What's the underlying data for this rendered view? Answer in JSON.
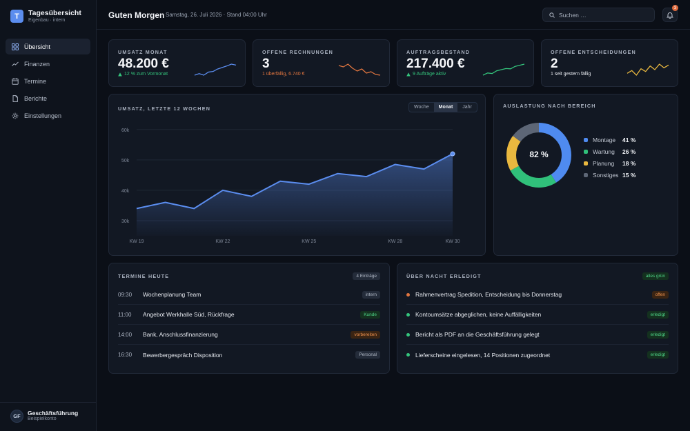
{
  "brand": {
    "logo_letter": "T",
    "title": "Tagesübersicht",
    "subtitle": "Eigenbau · intern"
  },
  "nav": [
    {
      "label": "Übersicht",
      "icon": "grid-icon",
      "active": true
    },
    {
      "label": "Finanzen",
      "icon": "trend-icon",
      "active": false
    },
    {
      "label": "Termine",
      "icon": "calendar-icon",
      "active": false
    },
    {
      "label": "Berichte",
      "icon": "document-icon",
      "active": false
    },
    {
      "label": "Einstellungen",
      "icon": "gear-icon",
      "active": false
    }
  ],
  "user": {
    "initials": "GF",
    "name": "Geschäftsführung",
    "account": "Beispielkonto"
  },
  "header": {
    "greeting": "Guten Morgen",
    "date": "Samstag, 26. Juli 2026 · Stand 04:00 Uhr",
    "search_placeholder": "Suchen …",
    "notification_count": "3"
  },
  "kpis": [
    {
      "label": "UMSATZ MONAT",
      "value": "48.200 €",
      "sub": "12 % zum Vormonat",
      "trend": "up",
      "sub_color": "#34c47c",
      "spark_color": "#5b8def",
      "spark": [
        3,
        3.5,
        3,
        4,
        4.2,
        5,
        5.5,
        6,
        6.6,
        6.3
      ]
    },
    {
      "label": "OFFENE RECHNUNGEN",
      "value": "3",
      "sub": "1 überfällig, 6.740 €",
      "trend": "none",
      "sub_color": "#e0753f",
      "spark_color": "#e0753f",
      "spark": [
        5,
        4.8,
        5.2,
        4.6,
        4.2,
        4.5,
        3.9,
        4.1,
        3.7,
        3.6
      ]
    },
    {
      "label": "AUFTRAGSBESTAND",
      "value": "217.400 €",
      "sub": "9 Aufträge aktiv",
      "trend": "up",
      "sub_color": "#34c47c",
      "spark_color": "#34c47c",
      "spark": [
        2,
        2.8,
        2.6,
        3.6,
        4,
        4.4,
        4.3,
        5.2,
        5.6,
        6
      ]
    },
    {
      "label": "OFFENE ENTSCHEIDUNGEN",
      "value": "2",
      "sub": "1 seit gestern fällig",
      "trend": "none",
      "sub_color": "#e6e9ef",
      "spark_color": "#e9b83f",
      "spark": [
        4,
        4.3,
        3.8,
        4.5,
        4.2,
        4.8,
        4.4,
        5,
        4.6,
        4.9
      ]
    }
  ],
  "revenue": {
    "title": "UMSATZ, LETZTE 12 WOCHEN",
    "segments": [
      "Woche",
      "Monat",
      "Jahr"
    ],
    "active_segment": "Monat"
  },
  "chart_data": {
    "type": "area",
    "x": [
      "KW 19",
      "KW 20",
      "KW 21",
      "KW 22",
      "KW 23",
      "KW 24",
      "KW 25",
      "KW 26",
      "KW 27",
      "KW 28",
      "KW 29",
      "KW 30"
    ],
    "x_tick_labels": [
      "KW 19",
      "KW 22",
      "KW 25",
      "KW 28",
      "KW 30"
    ],
    "values": [
      34000,
      36000,
      34000,
      40000,
      38000,
      43000,
      42000,
      45500,
      44500,
      48500,
      47000,
      52000
    ],
    "y_ticks": [
      "30k",
      "40k",
      "50k",
      "60k"
    ],
    "ylim": [
      25000,
      62000
    ],
    "grid": true,
    "color": "#5b8def"
  },
  "utilization": {
    "title": "AUSLASTUNG NACH BEREICH",
    "center_label": "82 %",
    "segments": [
      {
        "name": "Montage",
        "value": 41,
        "label": "41 %",
        "color": "#4f8bf0"
      },
      {
        "name": "Wartung",
        "value": 26,
        "label": "26 %",
        "color": "#30c07a"
      },
      {
        "name": "Planung",
        "value": 18,
        "label": "18 %",
        "color": "#e9b83f"
      },
      {
        "name": "Sonstiges",
        "value": 15,
        "label": "15 %",
        "color": "#5d6676"
      }
    ]
  },
  "appointments": {
    "title": "TERMINE HEUTE",
    "count_badge": "4 Einträge",
    "items": [
      {
        "time": "09:30",
        "title": "Wochenplanung Team",
        "tag": "intern",
        "tag_style": "grey"
      },
      {
        "time": "11:00",
        "title": "Angebot Werkhalle Süd, Rückfrage",
        "tag": "Kunde",
        "tag_style": "green"
      },
      {
        "time": "14:00",
        "title": "Bank, Anschlussfinanzierung",
        "tag": "vorbereiten",
        "tag_style": "orange"
      },
      {
        "time": "16:30",
        "title": "Bewerbergespräch Disposition",
        "tag": "Personal",
        "tag_style": "grey"
      }
    ]
  },
  "overnight": {
    "title": "ÜBER NACHT ERLEDIGT",
    "status_badge": "alles grün",
    "items": [
      {
        "text": "Rahmenvertrag Spedition, Entscheidung bis Donnerstag",
        "tag": "offen",
        "tag_style": "orange",
        "dot_color": "#e0753f"
      },
      {
        "text": "Kontoumsätze abgeglichen, keine Auffälligkeiten",
        "tag": "erledigt",
        "tag_style": "green",
        "dot_color": "#34c47c"
      },
      {
        "text": "Bericht als PDF an die Geschäftsführung gelegt",
        "tag": "erledigt",
        "tag_style": "green",
        "dot_color": "#34c47c"
      },
      {
        "text": "Lieferscheine eingelesen, 14 Positionen zugeordnet",
        "tag": "erledigt",
        "tag_style": "green",
        "dot_color": "#34c47c"
      }
    ]
  }
}
